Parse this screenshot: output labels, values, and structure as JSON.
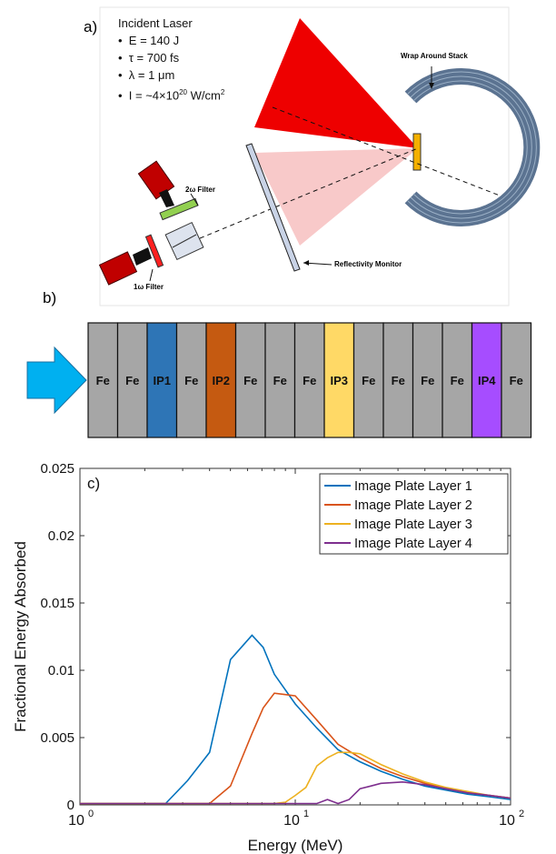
{
  "panel_a": {
    "label": "a)",
    "laser_title": "Incident Laser",
    "bullets": [
      {
        "prefix": "E = ",
        "main": "140 J",
        "sup": "",
        "tail": ""
      },
      {
        "prefix": "τ = ",
        "main": "700 fs",
        "sup": "",
        "tail": ""
      },
      {
        "prefix": "λ = ",
        "main": "1 μm",
        "sup": "",
        "tail": ""
      },
      {
        "prefix": "I  = ",
        "main": "~4×10",
        "sup": "20",
        "tail": " W/cm"
      }
    ],
    "intensity_unit_sup": "2",
    "wrap_label": "Wrap Around Stack",
    "filter_2w": "2ω Filter",
    "filter_1w": "1ω Filter",
    "reflectivity_label": "Reflectivity Monitor",
    "colors": {
      "red_cone": "#ee0000",
      "pink_cone": "#f8c9c9",
      "stack_gray": "#6a88a8",
      "target": "#f4b000",
      "camera": "#c00000"
    }
  },
  "panel_b": {
    "label": "b)",
    "layers": [
      "Fe",
      "Fe",
      "IP1",
      "Fe",
      "IP2",
      "Fe",
      "Fe",
      "Fe",
      "IP3",
      "Fe",
      "Fe",
      "Fe",
      "Fe",
      "IP4",
      "Fe"
    ],
    "colors": {
      "Fe": "#a6a6a6",
      "IP1": "#2e75b6",
      "IP2": "#c55a11",
      "IP3": "#ffd966",
      "IP4": "#a64dff",
      "arrow": "#00b0f0"
    }
  },
  "panel_c": {
    "label": "c)"
  },
  "chart_data": {
    "type": "line",
    "xscale": "log",
    "xlim": [
      1,
      100
    ],
    "ylim": [
      0,
      0.025
    ],
    "xlabel": "Energy (MeV)",
    "ylabel": "Fractional Energy Absorbed",
    "x_ticks": [
      {
        "base": "10",
        "exp": "0"
      },
      {
        "base": "10",
        "exp": "1"
      },
      {
        "base": "10",
        "exp": "2"
      }
    ],
    "y_ticks": [
      "0",
      "0.005",
      "0.01",
      "0.015",
      "0.02",
      "0.025"
    ],
    "legend_position": "top-right",
    "series": [
      {
        "name": "Image Plate Layer 1",
        "color": "#0072bd",
        "x": [
          1,
          2,
          2.5,
          3.16,
          4,
          5,
          6.3,
          7.1,
          8,
          10,
          12.6,
          15.8,
          20,
          25,
          31.6,
          40,
          50,
          63,
          80,
          100
        ],
        "y": [
          0.0001,
          0.0001,
          0.0001,
          0.0018,
          0.0039,
          0.0108,
          0.0126,
          0.0117,
          0.0097,
          0.0075,
          0.0057,
          0.0041,
          0.0032,
          0.0025,
          0.0019,
          0.0014,
          0.0011,
          0.0008,
          0.0006,
          0.0004
        ]
      },
      {
        "name": "Image Plate Layer 2",
        "color": "#d95319",
        "x": [
          1,
          3.16,
          4,
          5,
          6.3,
          7.1,
          8,
          8.9,
          10,
          12.6,
          15.8,
          20,
          25,
          31.6,
          40,
          50,
          63,
          80,
          100
        ],
        "y": [
          0.0001,
          0.0001,
          0.0001,
          0.0014,
          0.0053,
          0.0072,
          0.0083,
          0.0082,
          0.0081,
          0.0063,
          0.0045,
          0.0035,
          0.0027,
          0.0021,
          0.0016,
          0.0012,
          0.0009,
          0.0007,
          0.0005
        ]
      },
      {
        "name": "Image Plate Layer 3",
        "color": "#edb120",
        "x": [
          1,
          8,
          9,
          10,
          11.2,
          12.6,
          14.1,
          15.8,
          17.8,
          20,
          25,
          31.6,
          40,
          50,
          63,
          80,
          100
        ],
        "y": [
          0.0001,
          0.0001,
          0.0002,
          0.0007,
          0.0013,
          0.0029,
          0.0035,
          0.0039,
          0.0039,
          0.0038,
          0.003,
          0.0023,
          0.0017,
          0.0013,
          0.001,
          0.0007,
          0.0005
        ]
      },
      {
        "name": "Image Plate Layer 4",
        "color": "#7e2f8e",
        "x": [
          1,
          12.6,
          14.1,
          15.8,
          17.8,
          20,
          22.4,
          25,
          31.6,
          40,
          50,
          63,
          80,
          100
        ],
        "y": [
          0.0001,
          0.0001,
          0.0004,
          0.0001,
          0.0004,
          0.0012,
          0.0014,
          0.0016,
          0.0017,
          0.0015,
          0.0012,
          0.0009,
          0.0007,
          0.0005
        ]
      }
    ]
  }
}
